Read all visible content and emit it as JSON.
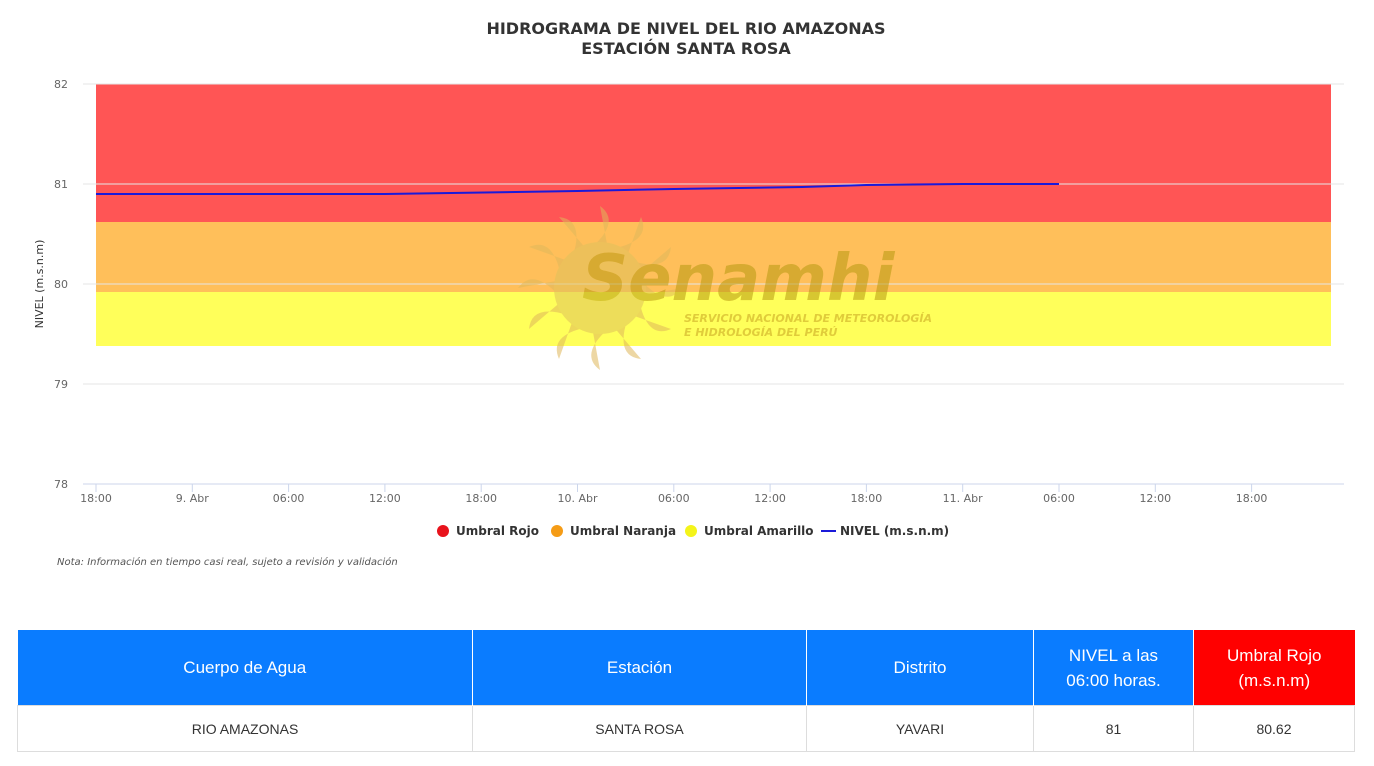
{
  "chart_data": {
    "type": "line",
    "title": "HIDROGRAMA DE NIVEL DEL RIO AMAZONAS",
    "subtitle": "ESTACIÓN SANTA ROSA",
    "ylabel": "NIVEL (m.s.n.m)",
    "ylim": [
      78,
      82
    ],
    "yticks": [
      "78",
      "79",
      "80",
      "81",
      "82"
    ],
    "x_range_hours": [
      18,
      138
    ],
    "xticks": [
      {
        "h": 18,
        "label": "18:00"
      },
      {
        "h": 24,
        "label": "9. Abr"
      },
      {
        "h": 30,
        "label": "06:00"
      },
      {
        "h": 36,
        "label": "12:00"
      },
      {
        "h": 42,
        "label": "18:00"
      },
      {
        "h": 48,
        "label": "10. Abr"
      },
      {
        "h": 54,
        "label": "06:00"
      },
      {
        "h": 60,
        "label": "12:00"
      },
      {
        "h": 66,
        "label": "18:00"
      },
      {
        "h": 72,
        "label": "11. Abr"
      },
      {
        "h": 78,
        "label": "06:00"
      },
      {
        "h": 84,
        "label": "12:00"
      },
      {
        "h": 90,
        "label": "18:00"
      }
    ],
    "bands": [
      {
        "name": "Umbral Rojo",
        "from": 80.62,
        "to": 82.0,
        "color": "#ff5555",
        "legend_color": "#e8131c"
      },
      {
        "name": "Umbral Naranja",
        "from": 79.92,
        "to": 80.62,
        "color": "#ffbf5a",
        "legend_color": "#f59c16"
      },
      {
        "name": "Umbral Amarillo",
        "from": 79.38,
        "to": 79.92,
        "color": "#ffff5a",
        "legend_color": "#f4f41a"
      }
    ],
    "series": [
      {
        "name": "NIVEL (m.s.n.m)",
        "color": "#1a1ad9",
        "points": [
          {
            "h": 18,
            "y": 80.9
          },
          {
            "h": 36,
            "y": 80.9
          },
          {
            "h": 48,
            "y": 80.93
          },
          {
            "h": 54,
            "y": 80.95
          },
          {
            "h": 62,
            "y": 80.97
          },
          {
            "h": 66,
            "y": 80.99
          },
          {
            "h": 72,
            "y": 81.0
          },
          {
            "h": 78,
            "y": 81.0
          }
        ]
      }
    ],
    "legend_position": "bottom-center"
  },
  "watermark": {
    "brand": "Senamhi",
    "line1": "SERVICIO NACIONAL DE METEOROLOGÍA",
    "line2": "E HIDROLOGÍA DEL PERÚ"
  },
  "note": "Nota: Información en tiempo casi real, sujeto a revisión y validación",
  "table": {
    "headers": {
      "cuerpo": "Cuerpo de Agua",
      "estacion": "Estación",
      "distrito": "Distrito",
      "nivel_line1": "NIVEL a las",
      "nivel_line2": "06:00 horas.",
      "umbral_line1": "Umbral Rojo",
      "umbral_line2": "(m.s.n.m)"
    },
    "row": {
      "cuerpo": "RIO AMAZONAS",
      "estacion": "SANTA ROSA",
      "distrito": "YAVARI",
      "nivel": "81",
      "umbral": "80.62"
    }
  }
}
